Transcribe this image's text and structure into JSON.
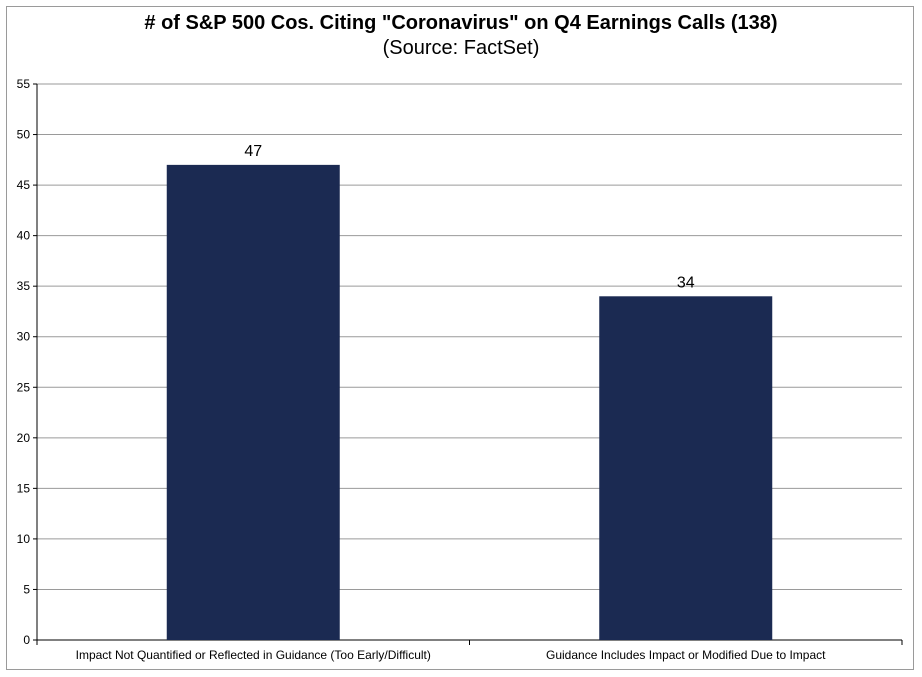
{
  "chart_data": {
    "type": "bar",
    "title": "# of S&P 500 Cos. Citing \"Coronavirus\" on Q4 Earnings Calls (138)",
    "subtitle": "(Source: FactSet)",
    "categories": [
      "Impact Not Quantified or Reflected in Guidance (Too Early/Difficult)",
      "Guidance Includes Impact or Modified Due to Impact"
    ],
    "values": [
      47,
      34
    ],
    "data_labels": [
      "47",
      "34"
    ],
    "ylim": [
      0,
      55
    ],
    "yticks": [
      0,
      5,
      10,
      15,
      20,
      25,
      30,
      35,
      40,
      45,
      50,
      55
    ],
    "xlabel": "",
    "ylabel": "",
    "grid": true,
    "legend": "none",
    "bar_color": "#1b2a52",
    "grid_color": "#9a9a9a"
  }
}
